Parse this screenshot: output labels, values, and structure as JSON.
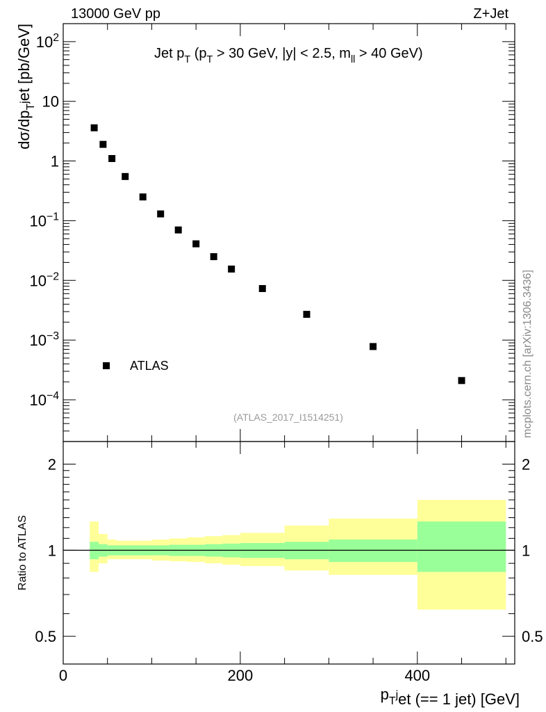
{
  "header": {
    "left": "13000 GeV pp",
    "right": "Z+Jet"
  },
  "watermark": "mcplots.cern.ch [arXiv:1306.3436]",
  "analysis_id": "(ATLAS_2017_I1514251)",
  "chart_data": [
    {
      "type": "scatter",
      "panel": "main",
      "title": "Jet p_T (p_T > 30 GeV, |y| < 2.5, m_ll > 40 GeV)",
      "ylabel": "dσ/dp_T^jet [pb/GeV]",
      "yscale": "log",
      "ylim": [
        2e-05,
        200
      ],
      "xlim": [
        0,
        510
      ],
      "y_tick_labels": [
        "10^-4",
        "10^-3",
        "10^-2",
        "10^-1",
        "1",
        "10",
        "10^2"
      ],
      "legend": {
        "entry": "ATLAS",
        "position": "bottom-left"
      },
      "series": [
        {
          "name": "ATLAS",
          "color": "#000000",
          "x": [
            35,
            45,
            55,
            70,
            90,
            110,
            130,
            150,
            170,
            190,
            225,
            275,
            350,
            450
          ],
          "y": [
            3.6,
            1.9,
            1.1,
            0.55,
            0.25,
            0.13,
            0.07,
            0.041,
            0.025,
            0.0155,
            0.0073,
            0.0027,
            0.00078,
            0.00021
          ]
        }
      ]
    },
    {
      "type": "area",
      "panel": "ratio",
      "ylabel": "Ratio to ATLAS",
      "xlabel": "p_T^jet (== 1 jet) [GeV]",
      "xlim": [
        0,
        510
      ],
      "ylim": [
        0.4,
        2.4
      ],
      "x_tick_labels": [
        "0",
        "200",
        "400"
      ],
      "y_tick_labels": [
        "0.5",
        "1",
        "2"
      ],
      "reference_line": 1,
      "bins": [
        [
          30,
          40
        ],
        [
          40,
          50
        ],
        [
          50,
          60
        ],
        [
          60,
          80
        ],
        [
          80,
          100
        ],
        [
          100,
          120
        ],
        [
          120,
          140
        ],
        [
          140,
          160
        ],
        [
          160,
          180
        ],
        [
          180,
          200
        ],
        [
          200,
          250
        ],
        [
          250,
          300
        ],
        [
          300,
          400
        ],
        [
          400,
          500
        ]
      ],
      "inner_band": {
        "color": "#99ff99",
        "lo": [
          0.93,
          0.95,
          0.96,
          0.96,
          0.96,
          0.96,
          0.955,
          0.955,
          0.95,
          0.945,
          0.94,
          0.93,
          0.91,
          0.84
        ],
        "hi": [
          1.07,
          1.05,
          1.04,
          1.04,
          1.04,
          1.04,
          1.045,
          1.045,
          1.05,
          1.055,
          1.06,
          1.07,
          1.09,
          1.26
        ]
      },
      "outer_band": {
        "color": "#ffff99",
        "lo": [
          0.84,
          0.9,
          0.93,
          0.93,
          0.93,
          0.92,
          0.915,
          0.91,
          0.9,
          0.89,
          0.88,
          0.85,
          0.82,
          0.62
        ],
        "hi": [
          1.26,
          1.14,
          1.09,
          1.08,
          1.08,
          1.09,
          1.1,
          1.11,
          1.12,
          1.13,
          1.15,
          1.22,
          1.29,
          1.5
        ]
      }
    }
  ]
}
